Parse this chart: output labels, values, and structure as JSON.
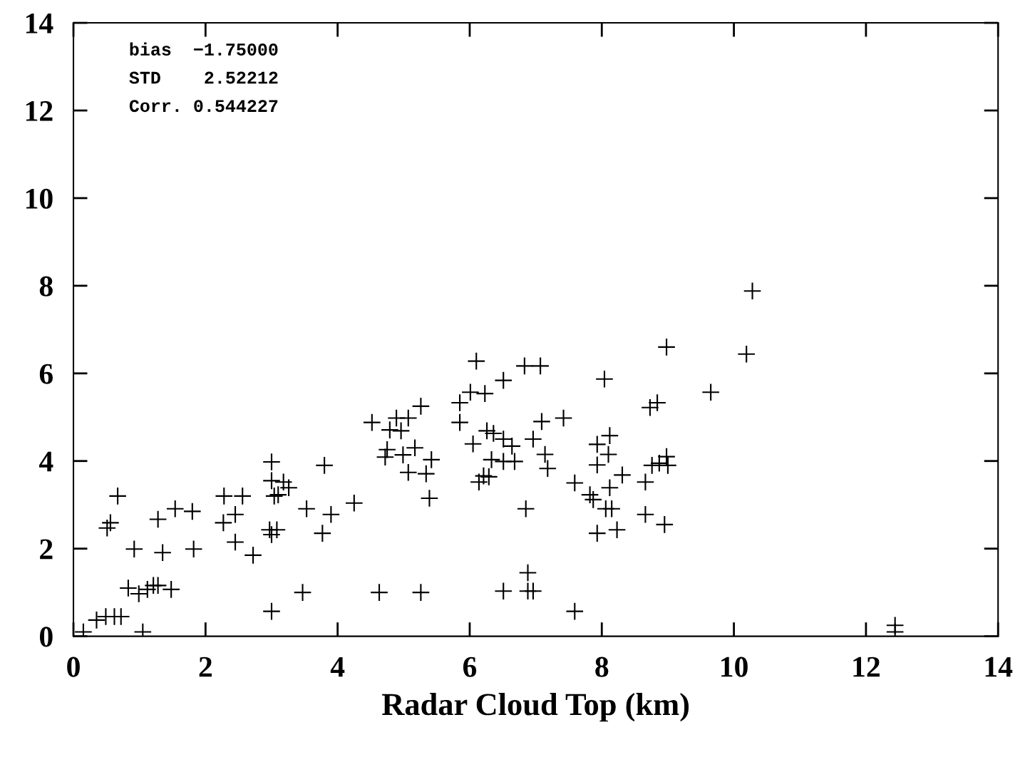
{
  "chart_data": {
    "type": "scatter",
    "xlabel": "Radar Cloud Top (km)",
    "annotations": [
      "bias  −1.75000",
      "STD    2.52212",
      "Corr. 0.544227"
    ],
    "marker": "cross",
    "grid": false,
    "legend": false,
    "xlim": [
      0,
      14
    ],
    "ylim": [
      0,
      14
    ],
    "xticks": [
      0,
      2,
      4,
      6,
      8,
      10,
      12,
      14
    ],
    "yticks": [
      0,
      2,
      4,
      6,
      8,
      10,
      12,
      14
    ],
    "series": [
      {
        "color": "#000000",
        "x": [
          0.15,
          0.35,
          0.49,
          0.62,
          0.72,
          0.51,
          0.56,
          0.67,
          0.92,
          0.83,
          0.99,
          1.05,
          1.12,
          1.21,
          1.28,
          1.48,
          1.28,
          1.35,
          1.54,
          1.8,
          1.82,
          2.28,
          2.27,
          2.45,
          2.56,
          2.45,
          2.72,
          3.0,
          3.0,
          2.97,
          3.0,
          3.0,
          3.1,
          3.08,
          3.04,
          3.18,
          3.26,
          3.47,
          3.53,
          3.77,
          3.8,
          3.9,
          4.25,
          4.52,
          4.63,
          4.72,
          4.75,
          4.79,
          4.89,
          4.96,
          4.99,
          5.07,
          5.07,
          5.17,
          5.26,
          5.26,
          5.34,
          5.39,
          5.42,
          5.85,
          5.85,
          6.05,
          6.01,
          6.1,
          6.23,
          6.14,
          6.21,
          6.29,
          6.26,
          6.36,
          6.33,
          6.51,
          6.51,
          6.51,
          6.51,
          6.64,
          6.68,
          6.83,
          6.88,
          6.88,
          6.85,
          6.96,
          6.96,
          7.07,
          7.09,
          7.14,
          7.18,
          7.42,
          7.59,
          7.59,
          7.82,
          7.87,
          7.93,
          7.93,
          7.93,
          8.04,
          8.1,
          8.12,
          8.12,
          8.06,
          8.15,
          8.23,
          8.31,
          8.66,
          8.66,
          8.73,
          8.84,
          8.76,
          8.87,
          8.95,
          8.98,
          9.0,
          8.98,
          9.65,
          10.19,
          10.28,
          12.44,
          12.44
        ],
        "values": [
          0.1,
          0.37,
          0.45,
          0.45,
          0.45,
          2.47,
          2.59,
          3.2,
          1.99,
          1.1,
          0.97,
          0.1,
          1.07,
          1.16,
          1.16,
          1.07,
          2.67,
          1.91,
          2.91,
          2.85,
          1.99,
          3.2,
          2.59,
          2.78,
          3.2,
          2.15,
          1.85,
          3.98,
          3.55,
          2.43,
          2.32,
          0.57,
          3.23,
          2.43,
          3.2,
          3.52,
          3.39,
          1.0,
          2.91,
          2.35,
          3.9,
          2.78,
          3.04,
          4.88,
          1.0,
          4.09,
          4.26,
          4.71,
          4.98,
          4.69,
          4.14,
          4.98,
          3.74,
          4.3,
          5.25,
          1.0,
          3.71,
          3.15,
          4.03,
          5.33,
          4.88,
          4.39,
          5.57,
          6.28,
          5.54,
          3.52,
          3.66,
          3.64,
          4.69,
          4.63,
          4.03,
          5.84,
          4.5,
          3.99,
          1.03,
          4.34,
          3.99,
          6.17,
          1.45,
          1.03,
          2.91,
          1.03,
          4.5,
          6.17,
          4.9,
          4.15,
          3.83,
          4.98,
          0.57,
          3.5,
          3.23,
          3.12,
          4.38,
          3.91,
          2.35,
          5.87,
          4.15,
          4.58,
          3.39,
          2.91,
          2.91,
          2.43,
          3.68,
          3.52,
          2.78,
          5.22,
          5.33,
          3.9,
          3.95,
          2.55,
          4.1,
          3.9,
          6.6,
          5.57,
          6.44,
          7.88,
          0.25,
          0.1
        ]
      }
    ]
  }
}
